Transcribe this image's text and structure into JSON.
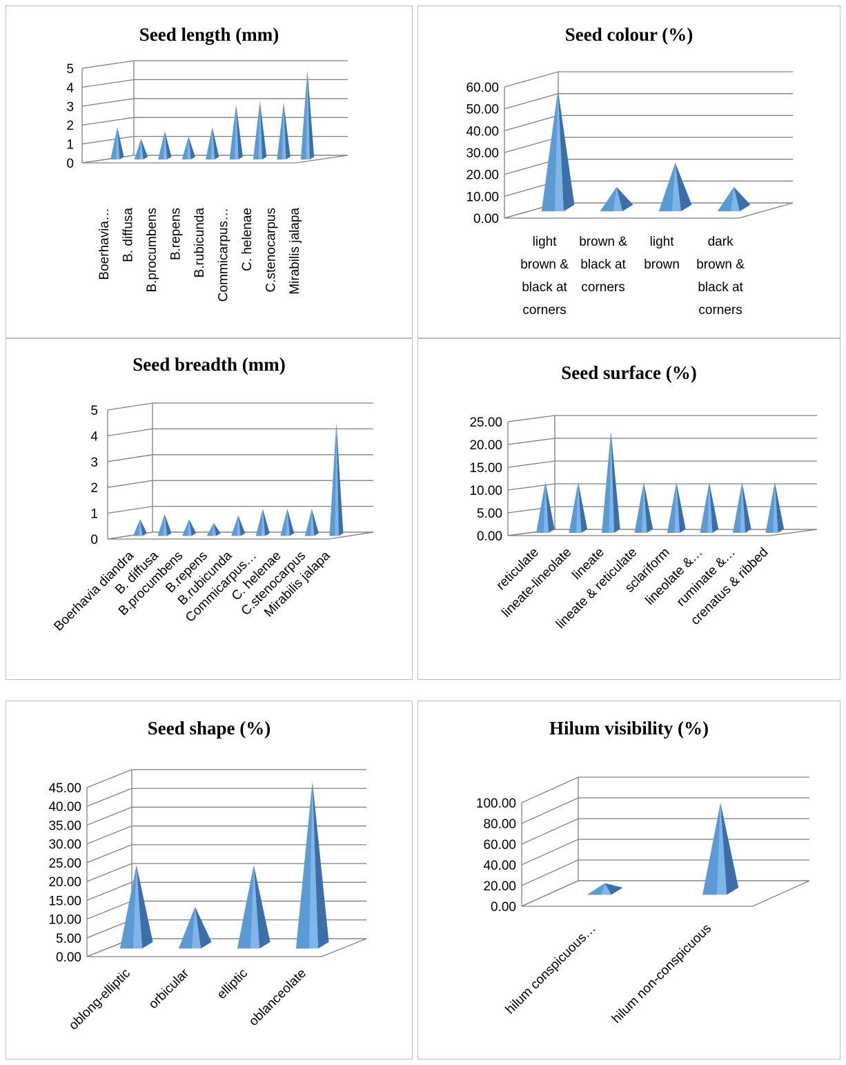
{
  "chart_data": [
    {
      "id": "seed-length",
      "type": "bar",
      "title": "Seed length (mm)",
      "categories": [
        "Boerhavia…",
        "B. diffusa",
        "B.procumbens",
        "B.repens",
        "B.rubicunda",
        "Commicarpus…",
        "C. helenae",
        "C.stenocarpus",
        "Mirabilis jalapa"
      ],
      "values": [
        1.7,
        1.1,
        1.5,
        1.2,
        1.7,
        2.9,
        3.1,
        3.0,
        4.7
      ],
      "ylim": [
        0,
        5
      ],
      "yticks": [
        "0",
        "1",
        "2",
        "3",
        "4",
        "5"
      ],
      "grid": true,
      "legend": "none",
      "mark_shape": "pyramid"
    },
    {
      "id": "seed-colour",
      "type": "bar",
      "title": "Seed colour (%)",
      "categories": [
        [
          "light",
          "brown &",
          "black at",
          "corners"
        ],
        [
          "brown &",
          "black at",
          "corners"
        ],
        [
          "light",
          "brown"
        ],
        [
          "dark",
          "brown &",
          "black at",
          "corners"
        ]
      ],
      "values": [
        55.56,
        11.11,
        22.22,
        11.11
      ],
      "ylim": [
        0,
        60
      ],
      "yticks": [
        "0.00",
        "10.00",
        "20.00",
        "30.00",
        "40.00",
        "50.00",
        "60.00"
      ],
      "grid": true,
      "legend": "none",
      "mark_shape": "pyramid"
    },
    {
      "id": "seed-breadth",
      "type": "bar",
      "title": "Seed breadth (mm)",
      "categories": [
        "Boerhavia diandra",
        "B. diffusa",
        "B.procumbens",
        "B.repens",
        "B.rubicunda",
        "Commicarpus…",
        "C. helenae",
        "C.stenocarpus",
        "Mirabilis jalapa"
      ],
      "values": [
        0.65,
        0.85,
        0.65,
        0.5,
        0.8,
        1.05,
        1.05,
        1.05,
        4.4
      ],
      "ylim": [
        0,
        5
      ],
      "yticks": [
        "0",
        "1",
        "2",
        "3",
        "4",
        "5"
      ],
      "grid": true,
      "legend": "none",
      "mark_shape": "pyramid"
    },
    {
      "id": "seed-surface",
      "type": "bar",
      "title": "Seed surface (%)",
      "categories": [
        "reticulate",
        "lineate-lineolate",
        "lineate",
        "lineate & reticulate",
        "sclariform",
        "lineolate &…",
        "ruminate &…",
        "crenatus & ribbed"
      ],
      "values": [
        11.11,
        11.11,
        22.22,
        11.11,
        11.11,
        11.11,
        11.11,
        11.11
      ],
      "ylim": [
        0,
        25
      ],
      "yticks": [
        "0.00",
        "5.00",
        "10.00",
        "15.00",
        "20.00",
        "25.00"
      ],
      "grid": true,
      "legend": "none",
      "mark_shape": "pyramid"
    },
    {
      "id": "seed-shape",
      "type": "bar",
      "title": "Seed shape (%)",
      "categories": [
        "oblong-elliptic",
        "orbicular",
        "elliptic",
        "oblanceolate"
      ],
      "values": [
        22.22,
        11.11,
        22.22,
        44.44
      ],
      "ylim": [
        0,
        45
      ],
      "yticks": [
        "0.00",
        "5.00",
        "10.00",
        "15.00",
        "20.00",
        "25.00",
        "30.00",
        "35.00",
        "40.00",
        "45.00"
      ],
      "grid": true,
      "legend": "none",
      "mark_shape": "pyramid"
    },
    {
      "id": "hilum-visibility",
      "type": "bar",
      "title": "Hilum visibility (%)",
      "categories": [
        "hilum conspicuous…",
        "hilum non-conspicuous"
      ],
      "values": [
        11.11,
        88.89
      ],
      "ylim": [
        0,
        100
      ],
      "yticks": [
        "0.00",
        "20.00",
        "40.00",
        "60.00",
        "80.00",
        "100.00"
      ],
      "grid": true,
      "legend": "none",
      "mark_shape": "pyramid"
    }
  ],
  "colors": {
    "front": "#5b9bd5",
    "side": "#3c6fa8",
    "light": "#7fb6ea",
    "grid": "#7f7f7f",
    "border": "#bdbdbd"
  }
}
